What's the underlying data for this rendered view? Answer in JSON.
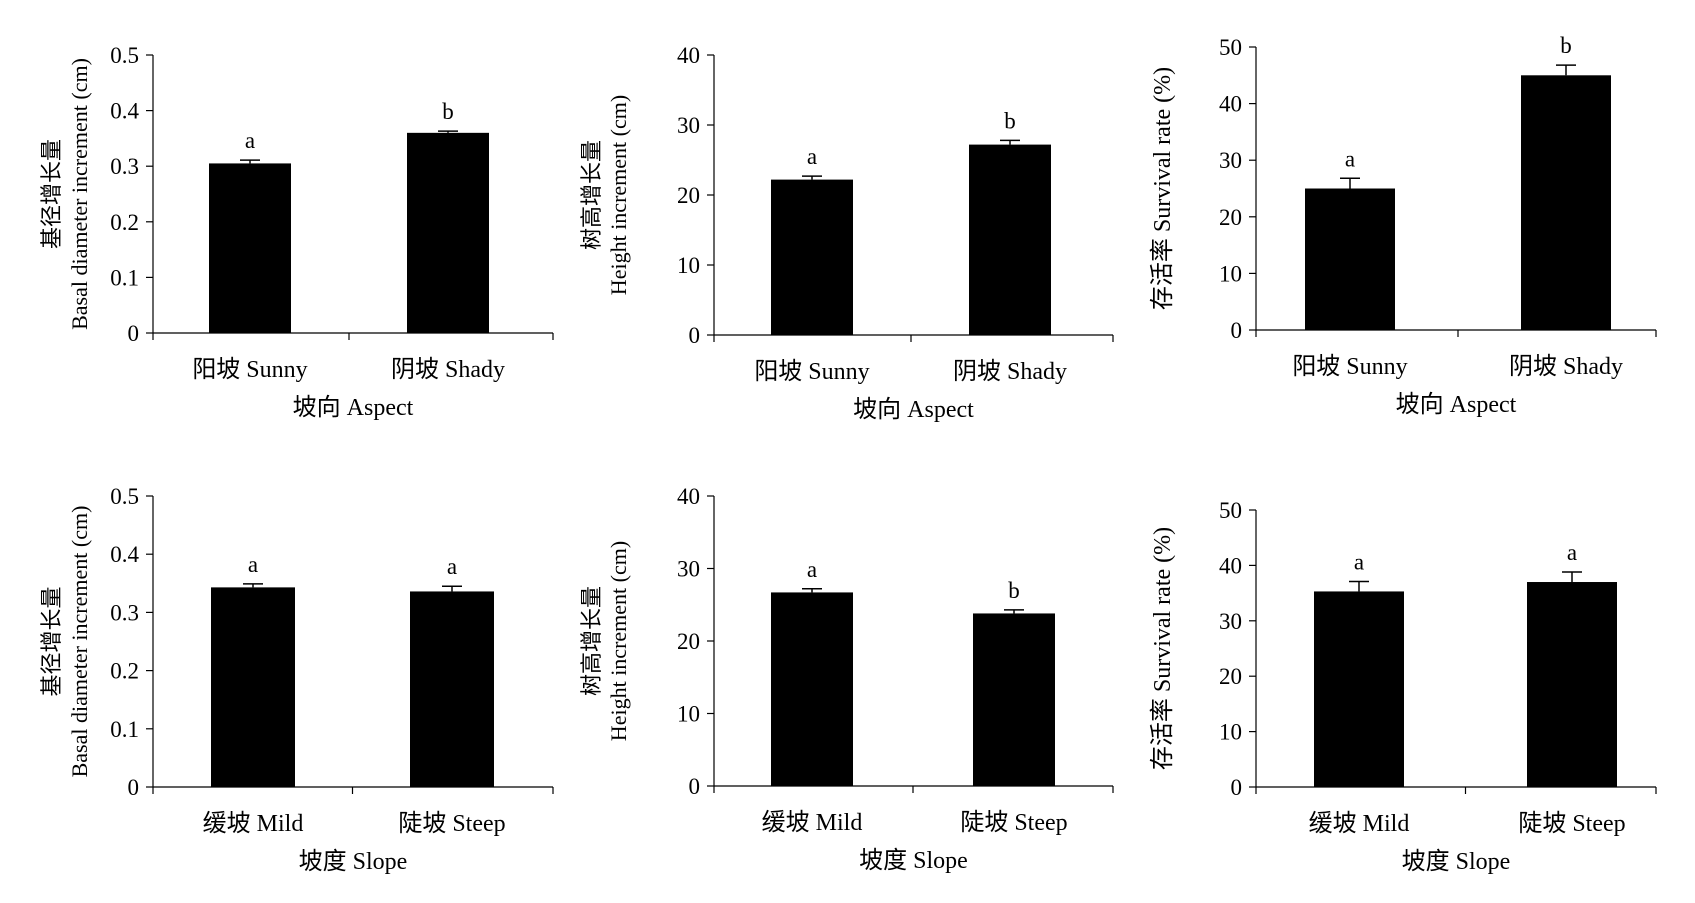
{
  "chart_data": [
    {
      "type": "bar",
      "categories": [
        "阳坡 Sunny",
        "阴坡 Shady"
      ],
      "values": [
        0.305,
        0.36
      ],
      "errors": [
        0.006,
        0.003
      ],
      "letters": [
        "a",
        "b"
      ],
      "xlabel": "坡向 Aspect",
      "ylabel_cn": "基径增长量",
      "ylabel_en": "Basal diameter increment (cm)",
      "ylim": [
        0,
        0.5
      ],
      "ticks": [
        "0",
        "0.1",
        "0.2",
        "0.3",
        "0.4",
        "0.5"
      ]
    },
    {
      "type": "bar",
      "categories": [
        "阳坡 Sunny",
        "阴坡 Shady"
      ],
      "values": [
        22.2,
        27.2
      ],
      "errors": [
        0.5,
        0.6
      ],
      "letters": [
        "a",
        "b"
      ],
      "xlabel": "坡向 Aspect",
      "ylabel_cn": "树高增长量",
      "ylabel_en": "Height increment (cm)",
      "ylim": [
        0,
        40
      ],
      "ticks": [
        "0",
        "10",
        "20",
        "30",
        "40"
      ]
    },
    {
      "type": "bar",
      "categories": [
        "阳坡 Sunny",
        "阴坡 Shady"
      ],
      "values": [
        25,
        45
      ],
      "errors": [
        1.8,
        1.8
      ],
      "letters": [
        "a",
        "b"
      ],
      "xlabel": "坡向 Aspect",
      "ylabel_cn": "存活率",
      "ylabel_en": "Survival rate (%)",
      "ylim": [
        0,
        50
      ],
      "ticks": [
        "0",
        "10",
        "20",
        "30",
        "40",
        "50"
      ]
    },
    {
      "type": "bar",
      "categories": [
        "缓坡 Mild",
        "陡坡 Steep"
      ],
      "values": [
        0.343,
        0.336
      ],
      "errors": [
        0.006,
        0.009
      ],
      "letters": [
        "a",
        "a"
      ],
      "xlabel": "坡度 Slope",
      "ylabel_cn": "基径增长量",
      "ylabel_en": "Basal diameter increment (cm)",
      "ylim": [
        0,
        0.5
      ],
      "ticks": [
        "0",
        "0.1",
        "0.2",
        "0.3",
        "0.4",
        "0.5"
      ]
    },
    {
      "type": "bar",
      "categories": [
        "缓坡 Mild",
        "陡坡 Steep"
      ],
      "values": [
        26.7,
        23.8
      ],
      "errors": [
        0.5,
        0.5
      ],
      "letters": [
        "a",
        "b"
      ],
      "xlabel": "坡度 Slope",
      "ylabel_cn": "树高增长量",
      "ylabel_en": "Height increment (cm)",
      "ylim": [
        0,
        40
      ],
      "ticks": [
        "0",
        "10",
        "20",
        "30",
        "40"
      ]
    },
    {
      "type": "bar",
      "categories": [
        "缓坡 Mild",
        "陡坡 Steep"
      ],
      "values": [
        35.3,
        37
      ],
      "errors": [
        1.8,
        1.8
      ],
      "letters": [
        "a",
        "a"
      ],
      "xlabel": "坡度 Slope",
      "ylabel_cn": "存活率",
      "ylabel_en": "Survival rate (%)",
      "ylim": [
        0,
        50
      ],
      "ticks": [
        "0",
        "10",
        "20",
        "30",
        "40",
        "50"
      ]
    }
  ]
}
